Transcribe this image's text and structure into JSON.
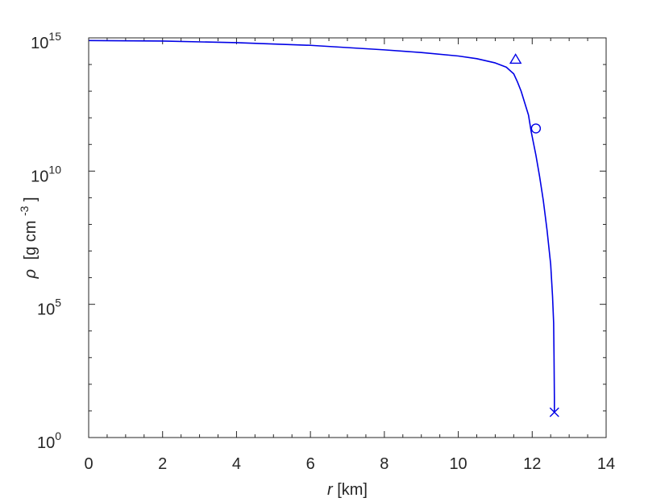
{
  "chart_data": {
    "type": "line",
    "xlabel": {
      "var": "r",
      "unit": "[km]"
    },
    "ylabel": {
      "var": "ρ",
      "unit_main": "[g cm",
      "unit_exp": "-3",
      "unit_close": "]"
    },
    "xlim": [
      0,
      14
    ],
    "ylim_log10": [
      0,
      15
    ],
    "yscale": "log",
    "x_ticks": [
      0,
      2,
      4,
      6,
      8,
      10,
      12,
      14
    ],
    "y_ticks": [
      {
        "base": "10",
        "exp": "0",
        "log10": 0
      },
      {
        "base": "10",
        "exp": "5",
        "log10": 5
      },
      {
        "base": "10",
        "exp": "10",
        "log10": 10
      },
      {
        "base": "10",
        "exp": "15",
        "log10": 15
      }
    ],
    "grid": false,
    "line_color": "#0000e6",
    "series": [
      {
        "r_km": [
          0,
          2,
          4,
          6,
          8,
          9,
          10,
          10.5,
          11,
          11.3,
          11.5,
          11.6,
          11.7,
          11.8,
          11.9,
          11.97,
          12.1,
          12.2,
          12.3,
          12.4,
          12.5,
          12.55,
          12.58,
          12.59,
          12.6,
          12.6
        ],
        "log10_rho": [
          14.9,
          14.88,
          14.82,
          14.72,
          14.55,
          14.45,
          14.32,
          14.22,
          14.06,
          13.9,
          13.65,
          13.35,
          13.0,
          12.55,
          12.1,
          11.5,
          10.6,
          9.8,
          8.9,
          7.8,
          6.5,
          5.3,
          4.3,
          3.1,
          1.5,
          0.95
        ]
      }
    ],
    "markers": [
      {
        "shape": "triangle",
        "r_km": 11.55,
        "log10_rho": 14.2
      },
      {
        "shape": "circle",
        "r_km": 12.1,
        "log10_rho": 11.6
      },
      {
        "shape": "cross",
        "r_km": 12.6,
        "log10_rho": 0.95
      }
    ]
  }
}
